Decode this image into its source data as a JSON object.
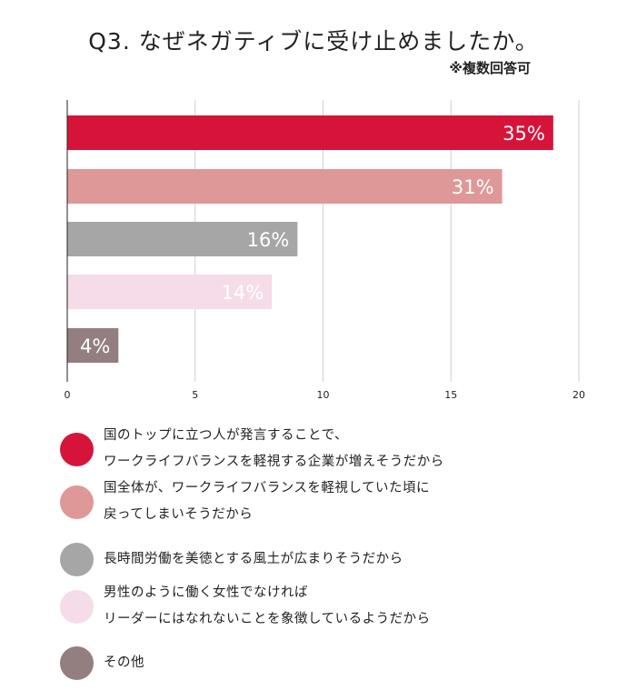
{
  "chart_data": {
    "type": "bar",
    "orientation": "horizontal",
    "title": "Q3. なぜネガティブに受け止めましたか。",
    "subtitle": "※複数回答可",
    "categories": [
      [
        "国のトップに立つ人が発言することで、",
        "ワークライフバランスを軽視する企業が増えそうだから"
      ],
      [
        "国全体が、ワークライフバランスを軽視していた頃に",
        "戻ってしまいそうだから"
      ],
      [
        "長時間労働を美徳とする風土が広まりそうだから"
      ],
      [
        "男性のように働く女性でなければ",
        "リーダーにはなれないことを象徴しているようだから"
      ],
      [
        "その他"
      ]
    ],
    "values": [
      19,
      17,
      9,
      8,
      2
    ],
    "data_labels": [
      "35%",
      "31%",
      "16%",
      "14%",
      "4%"
    ],
    "colors": [
      "#D6143A",
      "#DF9898",
      "#A6A6A6",
      "#F5DCE8",
      "#937F7F"
    ],
    "xlim": [
      0,
      20
    ],
    "xticks": [
      "0",
      "5",
      "10",
      "15",
      "20"
    ],
    "grid": true,
    "legend": "bottom"
  }
}
